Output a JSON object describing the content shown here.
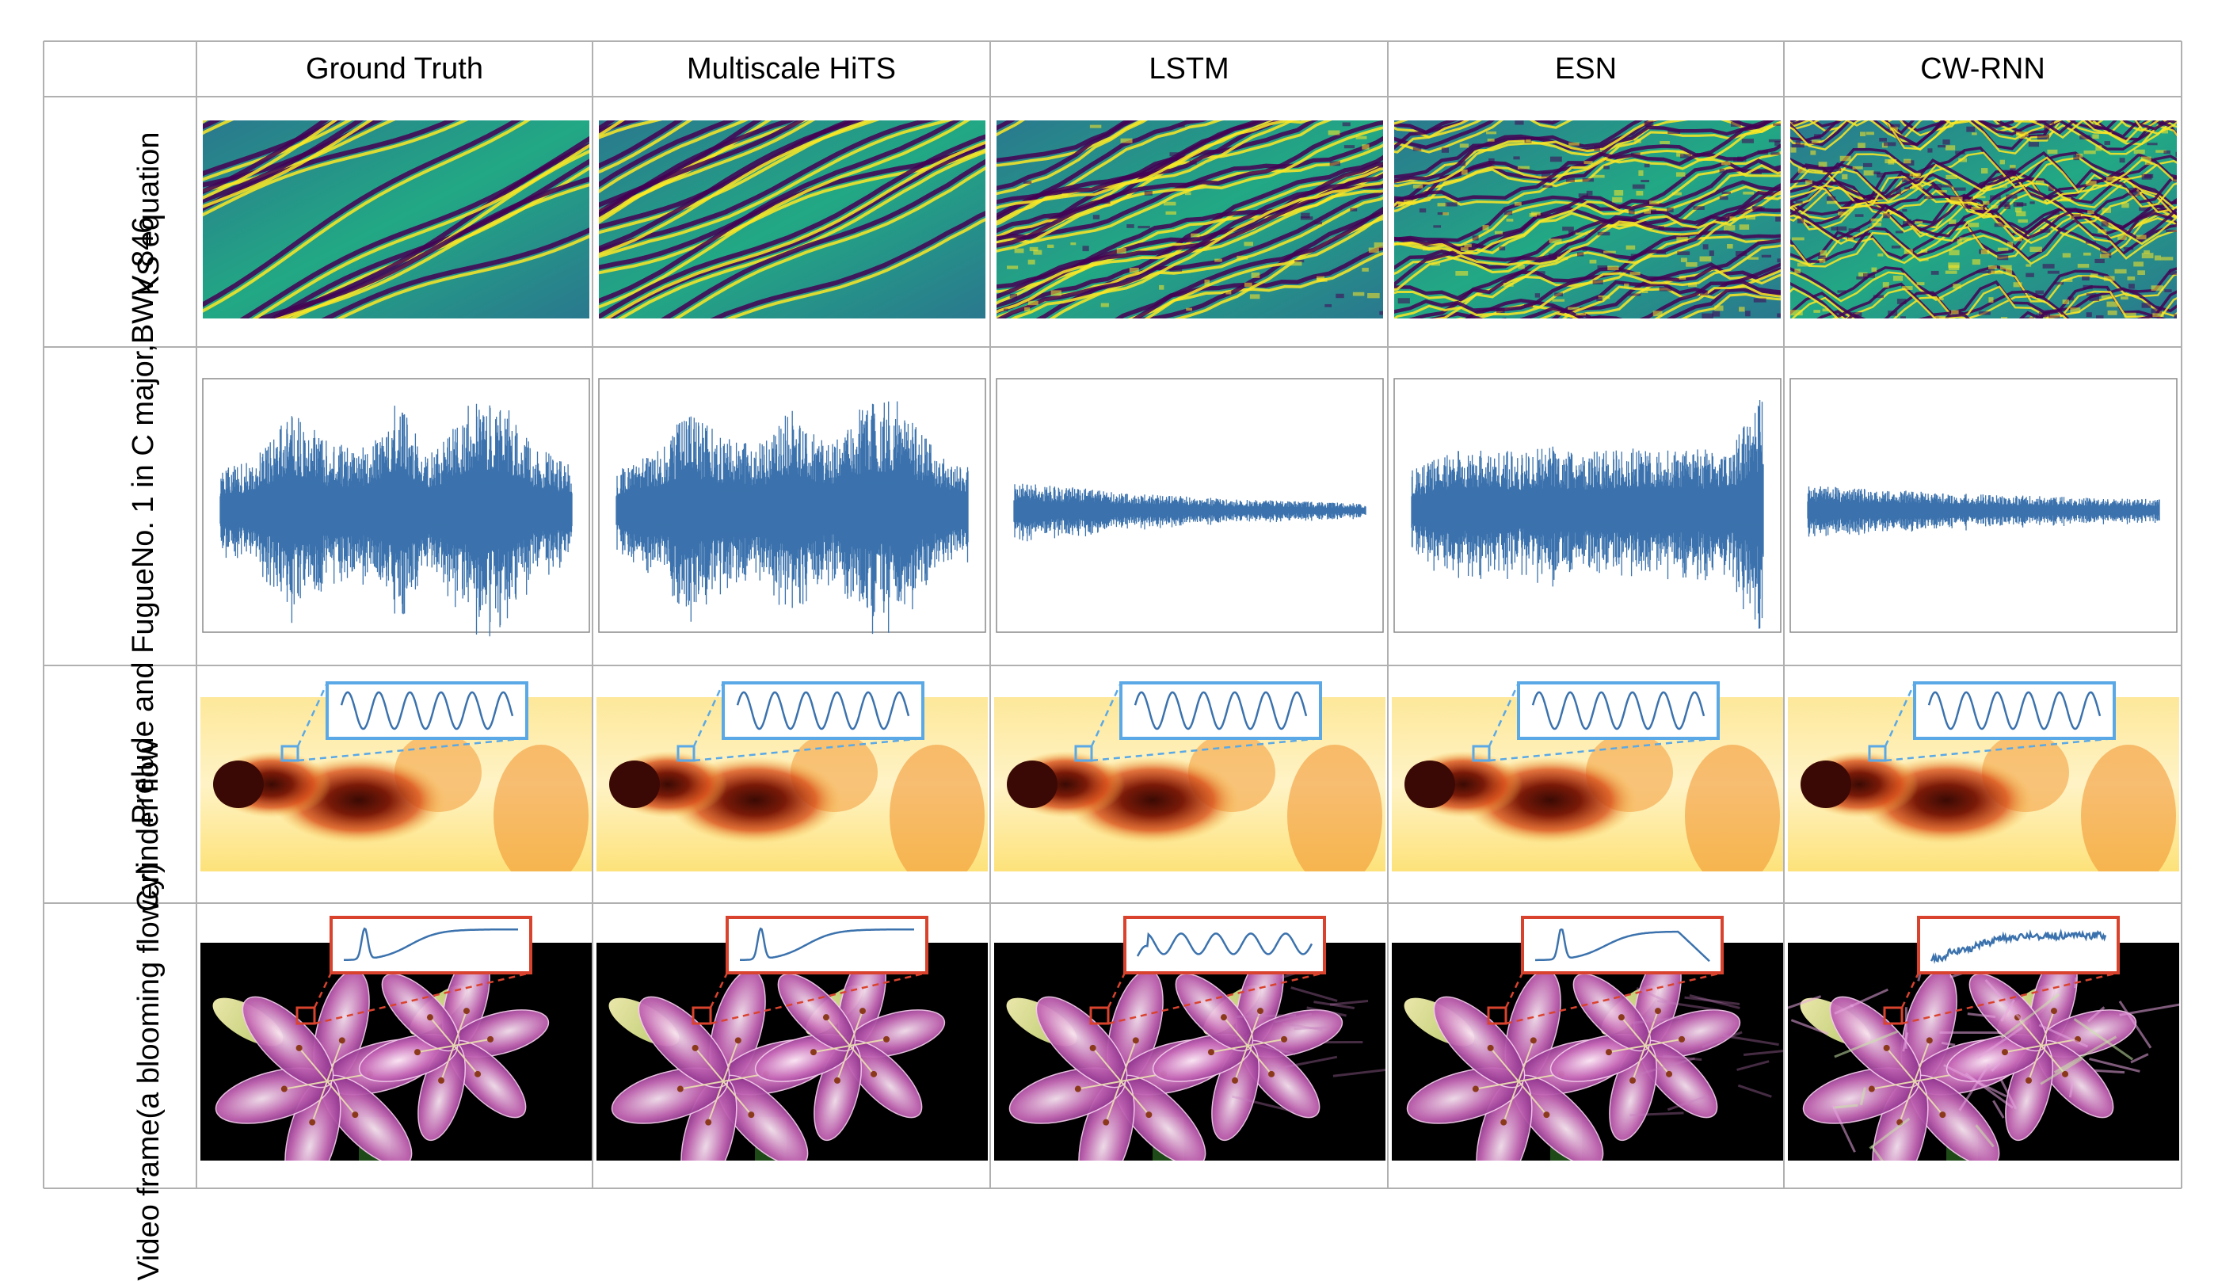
{
  "columns": [
    "Ground Truth",
    "Multiscale HiTS",
    "LSTM",
    "ESN",
    "CW-RNN"
  ],
  "rows": [
    {
      "id": "ks",
      "label_lines": [
        "KS equation"
      ]
    },
    {
      "id": "music",
      "label_lines": [
        "Prelude and Fugue",
        "No. 1 in C major,",
        "BWV 846"
      ]
    },
    {
      "id": "cylinder",
      "label_lines": [
        "Cylinder flow"
      ]
    },
    {
      "id": "video",
      "label_lines": [
        "Video frame",
        "(a blooming flower)"
      ]
    }
  ],
  "colors": {
    "grid_line": "#b0b0b0",
    "waveform": "#3b72ad",
    "cylinder_inset": "#5aa8e6",
    "video_inset": "#d9432e",
    "viridis_dark": "#440154",
    "viridis_mid": "#21918c",
    "viridis_bright": "#fde725"
  },
  "waveforms": [
    {
      "model": "Ground Truth",
      "envelope": [
        0.35,
        0.45,
        0.9,
        0.6,
        0.55,
        0.95,
        0.5,
        0.9,
        0.95,
        0.55,
        0.4
      ]
    },
    {
      "model": "Multiscale HiTS",
      "envelope": [
        0.35,
        0.5,
        0.85,
        0.65,
        0.55,
        0.9,
        0.55,
        0.9,
        0.95,
        0.55,
        0.4
      ]
    },
    {
      "model": "LSTM",
      "envelope": [
        0.25,
        0.22,
        0.19,
        0.16,
        0.14,
        0.12,
        0.1,
        0.09,
        0.08,
        0.07,
        0.06
      ]
    },
    {
      "model": "ESN",
      "envelope": [
        0.35,
        0.5,
        0.55,
        0.5,
        0.55,
        0.5,
        0.55,
        0.5,
        0.55,
        0.5,
        1.0
      ]
    },
    {
      "model": "CW-RNN",
      "envelope": [
        0.22,
        0.2,
        0.18,
        0.17,
        0.15,
        0.14,
        0.13,
        0.12,
        0.11,
        0.1,
        0.1
      ]
    }
  ]
}
